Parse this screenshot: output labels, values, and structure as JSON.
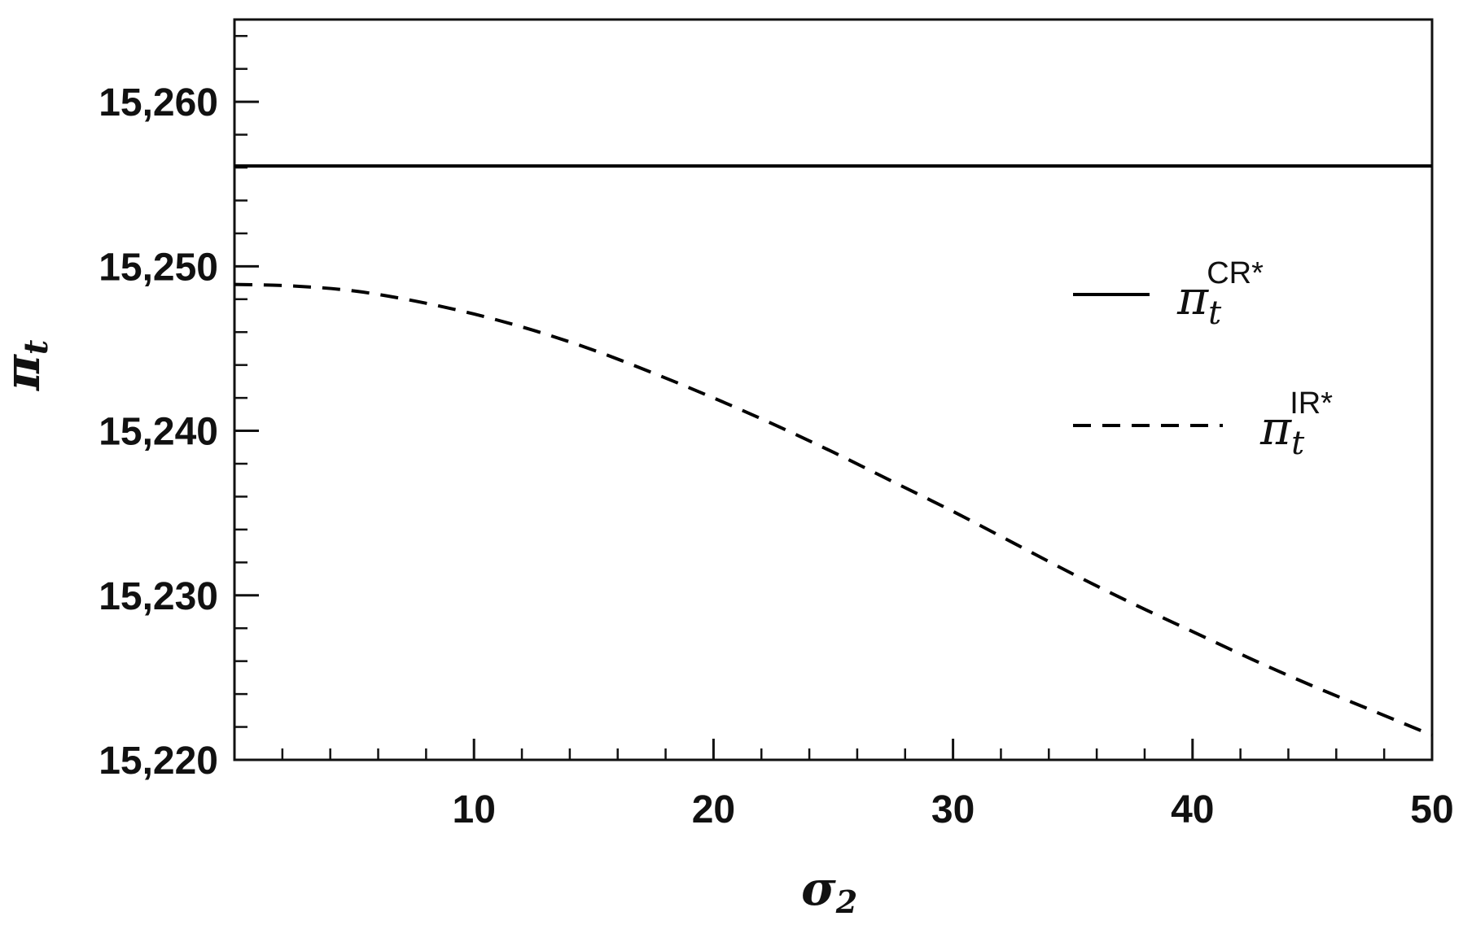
{
  "chart_data": {
    "type": "line",
    "xlabel": "σ",
    "xlabel_sub": "2",
    "ylabel": "π",
    "ylabel_sub": "t",
    "xlim": [
      0,
      50
    ],
    "ylim": [
      15220,
      15265
    ],
    "x_ticks": [
      10,
      20,
      30,
      40,
      50
    ],
    "x_tick_labels": [
      "10",
      "20",
      "30",
      "40",
      "50"
    ],
    "y_ticks": [
      15220,
      15230,
      15240,
      15250,
      15260
    ],
    "y_tick_labels": [
      "15,220",
      "15,230",
      "15,240",
      "15,250",
      "15,260"
    ],
    "x_minor_step": 2,
    "y_minor_step": 2,
    "grid": false,
    "legend_position": "right",
    "series": [
      {
        "name": "π",
        "name_sub": "t",
        "name_sup": "CR*",
        "style": "solid",
        "color": "#000000",
        "x": [
          0,
          50
        ],
        "y": [
          15256.1,
          15256.1
        ]
      },
      {
        "name": "π",
        "name_sub": "t",
        "name_sup": "IR*",
        "style": "dashed",
        "color": "#000000",
        "x": [
          0,
          2.5,
          5,
          7.5,
          10,
          12.5,
          15,
          17.5,
          20,
          22.5,
          25,
          27.5,
          30,
          32.5,
          35,
          37.5,
          40,
          42.5,
          45,
          47.5,
          50
        ],
        "y": [
          15248.9,
          15248.8,
          15248.5,
          15247.9,
          15247.1,
          15246.1,
          15244.9,
          15243.5,
          15242.0,
          15240.4,
          15238.7,
          15236.9,
          15235.1,
          15233.2,
          15231.3,
          15229.5,
          15227.8,
          15226.1,
          15224.5,
          15223.0,
          15221.5
        ]
      }
    ]
  }
}
